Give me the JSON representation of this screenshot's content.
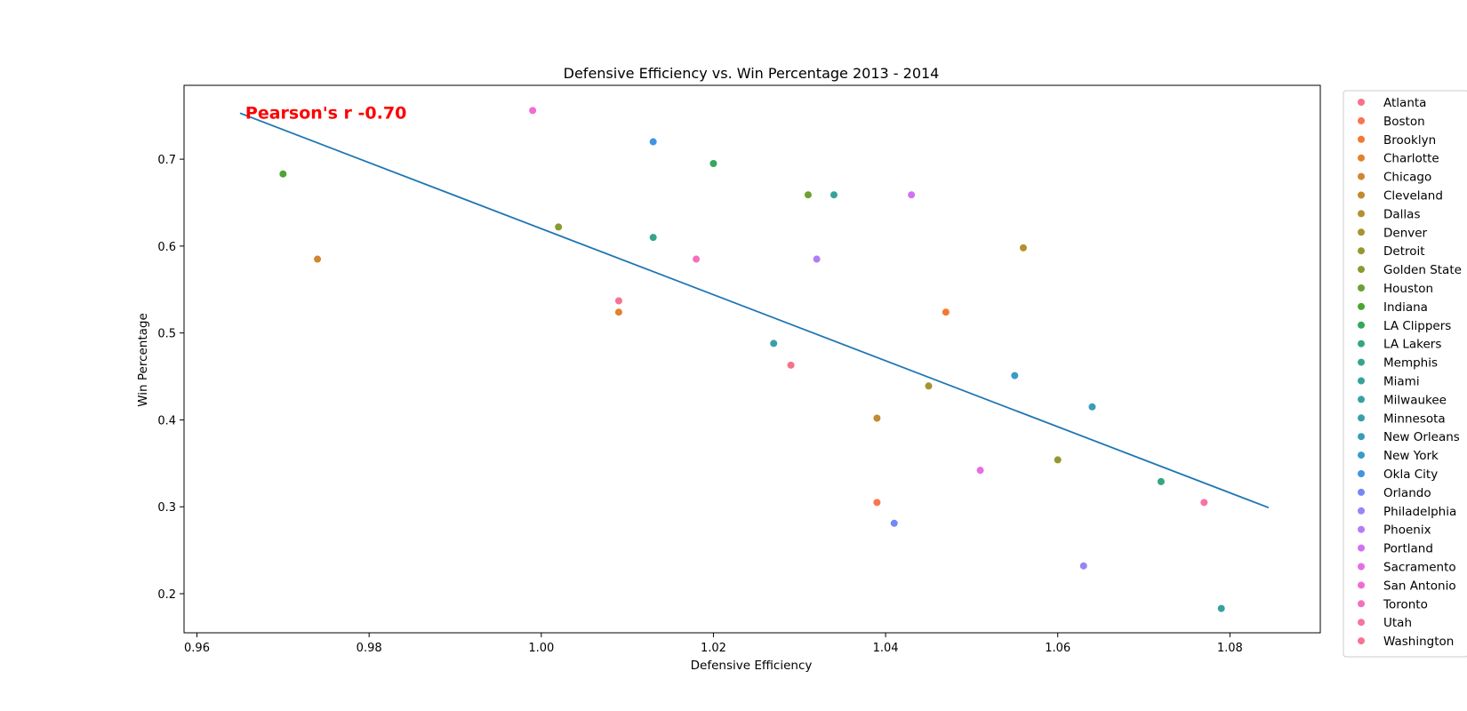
{
  "chart_data": {
    "type": "scatter",
    "title": "Defensive Efficiency vs. Win Percentage 2013 - 2014",
    "xlabel": "Defensive Efficiency",
    "ylabel": "Win Percentage",
    "xlim": [
      0.9585,
      1.0905
    ],
    "ylim": [
      0.155,
      0.785
    ],
    "xticks": [
      "0.96",
      "0.98",
      "1.00",
      "1.02",
      "1.04",
      "1.06",
      "1.08"
    ],
    "xtick_values": [
      0.96,
      0.98,
      1.0,
      1.02,
      1.04,
      1.06,
      1.08
    ],
    "yticks": [
      "0.2",
      "0.3",
      "0.4",
      "0.5",
      "0.6",
      "0.7"
    ],
    "ytick_values": [
      0.2,
      0.3,
      0.4,
      0.5,
      0.6,
      0.7
    ],
    "grid": false,
    "legend_position": "outside right",
    "annotation": {
      "text": "Pearson's r -0.70",
      "color": "#ff0000",
      "x": 0.965,
      "y": 0.752
    },
    "regression_line": {
      "x": [
        0.965,
        1.0845
      ],
      "y": [
        0.753,
        0.299
      ],
      "color": "#1f77b4"
    },
    "series": [
      {
        "name": "Atlanta",
        "color": "#f77189",
        "x": [
          1.029
        ],
        "y": [
          0.463
        ]
      },
      {
        "name": "Boston",
        "color": "#f7754f",
        "x": [
          1.039
        ],
        "y": [
          0.305
        ]
      },
      {
        "name": "Brooklyn",
        "color": "#f37932",
        "x": [
          1.047
        ],
        "y": [
          0.524
        ]
      },
      {
        "name": "Charlotte",
        "color": "#e1822f",
        "x": [
          1.009
        ],
        "y": [
          0.524
        ]
      },
      {
        "name": "Chicago",
        "color": "#d0872f",
        "x": [
          0.974
        ],
        "y": [
          0.585
        ]
      },
      {
        "name": "Cleveland",
        "color": "#c28b31",
        "x": [
          1.039
        ],
        "y": [
          0.402
        ]
      },
      {
        "name": "Dallas",
        "color": "#b39031",
        "x": [
          1.056
        ],
        "y": [
          0.598
        ]
      },
      {
        "name": "Denver",
        "color": "#a59431",
        "x": [
          1.045
        ],
        "y": [
          0.439
        ]
      },
      {
        "name": "Detroit",
        "color": "#979732",
        "x": [
          1.06
        ],
        "y": [
          0.354
        ]
      },
      {
        "name": "Golden State",
        "color": "#879b32",
        "x": [
          1.002
        ],
        "y": [
          0.622
        ]
      },
      {
        "name": "Houston",
        "color": "#6ca032",
        "x": [
          1.031
        ],
        "y": [
          0.659
        ]
      },
      {
        "name": "Indiana",
        "color": "#4aa532",
        "x": [
          0.97
        ],
        "y": [
          0.683
        ]
      },
      {
        "name": "LA Clippers",
        "color": "#33a85a",
        "x": [
          1.02
        ],
        "y": [
          0.695
        ]
      },
      {
        "name": "LA Lakers",
        "color": "#35a67d",
        "x": [
          1.072
        ],
        "y": [
          0.329
        ]
      },
      {
        "name": "Memphis",
        "color": "#36a48d",
        "x": [
          1.013
        ],
        "y": [
          0.61
        ]
      },
      {
        "name": "Miami",
        "color": "#37a398",
        "x": [
          1.034
        ],
        "y": [
          0.659
        ]
      },
      {
        "name": "Milwaukee",
        "color": "#37a1a2",
        "x": [
          1.079
        ],
        "y": [
          0.183
        ]
      },
      {
        "name": "Minnesota",
        "color": "#38a0ab",
        "x": [
          1.027
        ],
        "y": [
          0.488
        ]
      },
      {
        "name": "New Orleans",
        "color": "#399db8",
        "x": [
          1.064
        ],
        "y": [
          0.415
        ]
      },
      {
        "name": "New York",
        "color": "#3a9ac8",
        "x": [
          1.055
        ],
        "y": [
          0.451
        ]
      },
      {
        "name": "Okla City",
        "color": "#4194e1",
        "x": [
          1.013
        ],
        "y": [
          0.72
        ]
      },
      {
        "name": "Orlando",
        "color": "#7388f4",
        "x": [
          1.041
        ],
        "y": [
          0.281
        ]
      },
      {
        "name": "Philadelphia",
        "color": "#9785f4",
        "x": [
          1.063
        ],
        "y": [
          0.232
        ]
      },
      {
        "name": "Phoenix",
        "color": "#b47cf4",
        "x": [
          1.032
        ],
        "y": [
          0.585
        ]
      },
      {
        "name": "Portland",
        "color": "#d072f4",
        "x": [
          1.043
        ],
        "y": [
          0.659
        ]
      },
      {
        "name": "Sacramento",
        "color": "#e66ee4",
        "x": [
          1.051
        ],
        "y": [
          0.342
        ]
      },
      {
        "name": "San Antonio",
        "color": "#f26bd2",
        "x": [
          0.999
        ],
        "y": [
          0.756
        ]
      },
      {
        "name": "Toronto",
        "color": "#f56fbf",
        "x": [
          1.018
        ],
        "y": [
          0.585
        ]
      },
      {
        "name": "Utah",
        "color": "#f672a7",
        "x": [
          1.077
        ],
        "y": [
          0.305
        ]
      },
      {
        "name": "Washington",
        "color": "#f77392",
        "x": [
          1.009
        ],
        "y": [
          0.537
        ]
      }
    ]
  }
}
